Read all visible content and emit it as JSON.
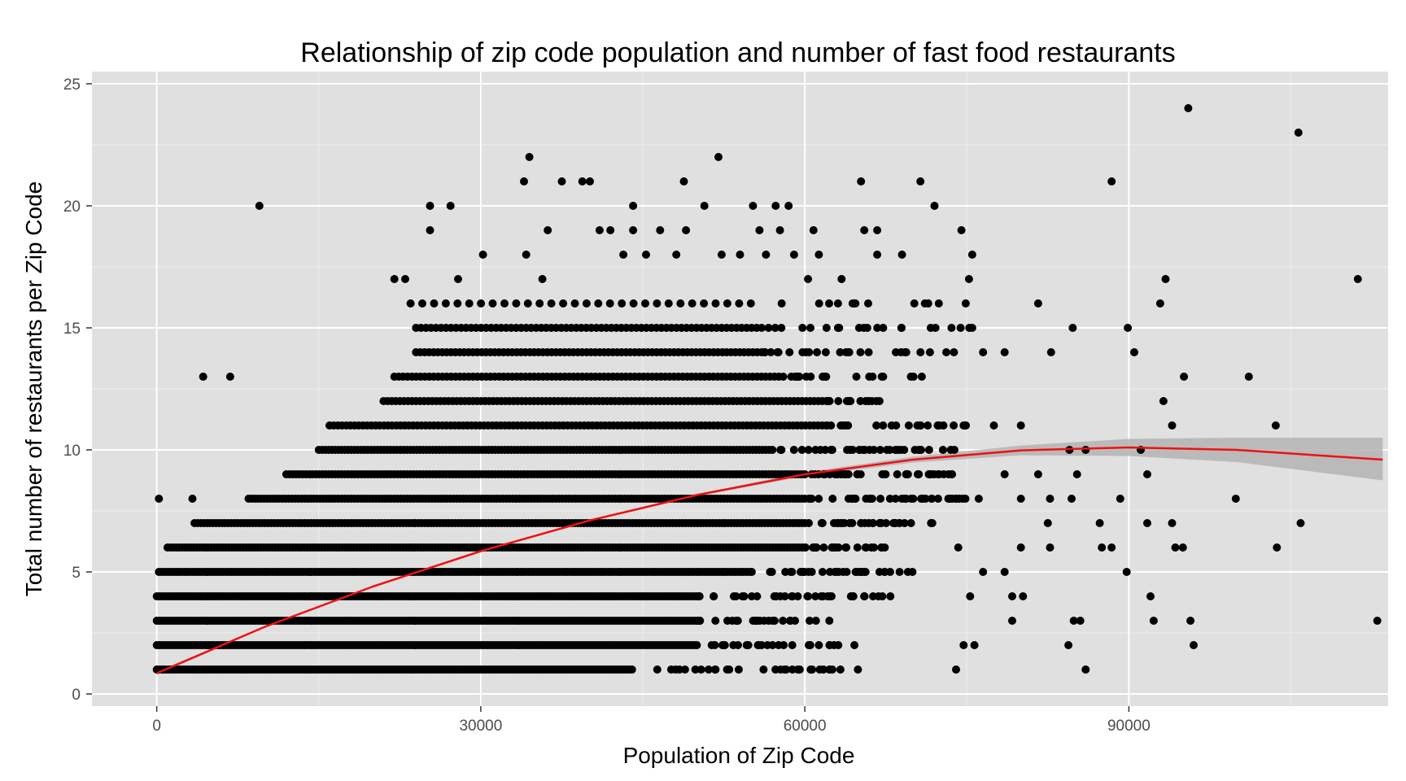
{
  "chart_data": {
    "type": "scatter",
    "title": "Relationship of zip code population and number of fast food restaurants",
    "xlabel": "Population of Zip Code",
    "ylabel": "Total number of restaurants per Zip Code",
    "xlim": [
      -6000,
      114000
    ],
    "ylim": [
      -0.5,
      25.5
    ],
    "x_ticks": [
      0,
      30000,
      60000,
      90000
    ],
    "x_tick_labels": [
      "0",
      "30000",
      "60000",
      "90000"
    ],
    "y_ticks": [
      0,
      5,
      10,
      15,
      20,
      25
    ],
    "y_tick_labels": [
      "0",
      "5",
      "10",
      "15",
      "20",
      "25"
    ],
    "grid": true,
    "legend": "none",
    "colors": {
      "panel_background": "#e0e0e0",
      "grid_major": "#ffffff",
      "grid_minor": "#eeeeee",
      "points": "#000000",
      "fit_line": "#ee1111",
      "confidence_band": "#b3b3b3"
    },
    "bands": [
      {
        "y": 1,
        "dense": [
          0,
          44000
        ],
        "sparse": [
          44000,
          65000
        ],
        "n_dense": 200,
        "n_sparse": 30
      },
      {
        "y": 2,
        "dense": [
          0,
          50000
        ],
        "sparse": [
          50000,
          65000
        ],
        "n_dense": 220,
        "n_sparse": 25
      },
      {
        "y": 3,
        "dense": [
          0,
          50000
        ],
        "sparse": [
          50000,
          63000
        ],
        "n_dense": 220,
        "n_sparse": 25
      },
      {
        "y": 4,
        "dense": [
          0,
          50000
        ],
        "sparse": [
          50000,
          68000
        ],
        "n_dense": 220,
        "n_sparse": 35
      },
      {
        "y": 5,
        "dense": [
          200,
          55000
        ],
        "sparse": [
          55000,
          70000
        ],
        "n_dense": 230,
        "n_sparse": 35
      },
      {
        "y": 6,
        "dense": [
          1000,
          60000
        ],
        "sparse": [
          60000,
          68000
        ],
        "n_dense": 220,
        "n_sparse": 25
      },
      {
        "y": 7,
        "dense": [
          3500,
          60000
        ],
        "sparse": [
          60000,
          72000
        ],
        "n_dense": 200,
        "n_sparse": 30
      },
      {
        "y": 8,
        "dense": [
          8500,
          60000
        ],
        "sparse": [
          60000,
          75000
        ],
        "n_dense": 180,
        "n_sparse": 40
      },
      {
        "y": 9,
        "dense": [
          12000,
          60000
        ],
        "sparse": [
          60000,
          75000
        ],
        "n_dense": 160,
        "n_sparse": 35
      },
      {
        "y": 10,
        "dense": [
          15000,
          57000
        ],
        "sparse": [
          57000,
          74000
        ],
        "n_dense": 140,
        "n_sparse": 35
      },
      {
        "y": 11,
        "dense": [
          16000,
          62000
        ],
        "sparse": [
          62000,
          75000
        ],
        "n_dense": 120,
        "n_sparse": 25
      },
      {
        "y": 12,
        "dense": [
          21000,
          62000
        ],
        "sparse": [
          62000,
          67000
        ],
        "n_dense": 110,
        "n_sparse": 15
      },
      {
        "y": 13,
        "dense": [
          22000,
          58000
        ],
        "sparse": [
          58000,
          72000
        ],
        "n_dense": 90,
        "n_sparse": 20
      },
      {
        "y": 14,
        "dense": [
          24000,
          56000
        ],
        "sparse": [
          56000,
          75000
        ],
        "n_dense": 80,
        "n_sparse": 25
      },
      {
        "y": 15,
        "dense": [
          24000,
          56000
        ],
        "sparse": [
          56000,
          76000
        ],
        "n_dense": 70,
        "n_sparse": 20
      },
      {
        "y": 16,
        "dense": [
          23500,
          55000
        ],
        "sparse": [
          55000,
          75000
        ],
        "n_dense": 30,
        "n_sparse": 12
      }
    ],
    "points": [
      {
        "x": 200,
        "y": 8
      },
      {
        "x": 3300,
        "y": 8
      },
      {
        "x": 4300,
        "y": 13
      },
      {
        "x": 6800,
        "y": 13
      },
      {
        "x": 9500,
        "y": 20
      },
      {
        "x": 25300,
        "y": 20
      },
      {
        "x": 27200,
        "y": 20
      },
      {
        "x": 25300,
        "y": 19
      },
      {
        "x": 22000,
        "y": 17
      },
      {
        "x": 23000,
        "y": 17
      },
      {
        "x": 27900,
        "y": 17
      },
      {
        "x": 30200,
        "y": 18
      },
      {
        "x": 34000,
        "y": 21
      },
      {
        "x": 34500,
        "y": 22
      },
      {
        "x": 34200,
        "y": 18
      },
      {
        "x": 35700,
        "y": 17
      },
      {
        "x": 36200,
        "y": 19
      },
      {
        "x": 37500,
        "y": 21
      },
      {
        "x": 39400,
        "y": 21
      },
      {
        "x": 40100,
        "y": 21
      },
      {
        "x": 41000,
        "y": 19
      },
      {
        "x": 42000,
        "y": 19
      },
      {
        "x": 43200,
        "y": 18
      },
      {
        "x": 44100,
        "y": 19
      },
      {
        "x": 44100,
        "y": 20
      },
      {
        "x": 45300,
        "y": 18
      },
      {
        "x": 46600,
        "y": 19
      },
      {
        "x": 48100,
        "y": 18
      },
      {
        "x": 48800,
        "y": 21
      },
      {
        "x": 49000,
        "y": 19
      },
      {
        "x": 50700,
        "y": 20
      },
      {
        "x": 52000,
        "y": 22
      },
      {
        "x": 52300,
        "y": 18
      },
      {
        "x": 54000,
        "y": 18
      },
      {
        "x": 55200,
        "y": 20
      },
      {
        "x": 55800,
        "y": 19
      },
      {
        "x": 56400,
        "y": 18
      },
      {
        "x": 57300,
        "y": 20
      },
      {
        "x": 57700,
        "y": 19
      },
      {
        "x": 58500,
        "y": 20
      },
      {
        "x": 59000,
        "y": 18
      },
      {
        "x": 60800,
        "y": 19
      },
      {
        "x": 61300,
        "y": 18
      },
      {
        "x": 60300,
        "y": 17
      },
      {
        "x": 63400,
        "y": 17
      },
      {
        "x": 65200,
        "y": 21
      },
      {
        "x": 65500,
        "y": 19
      },
      {
        "x": 66700,
        "y": 19
      },
      {
        "x": 66700,
        "y": 18
      },
      {
        "x": 69000,
        "y": 18
      },
      {
        "x": 70700,
        "y": 21
      },
      {
        "x": 72000,
        "y": 20
      },
      {
        "x": 74500,
        "y": 19
      },
      {
        "x": 75500,
        "y": 18
      },
      {
        "x": 75200,
        "y": 17
      },
      {
        "x": 74900,
        "y": 16
      },
      {
        "x": 75500,
        "y": 15
      },
      {
        "x": 76500,
        "y": 14
      },
      {
        "x": 78500,
        "y": 14
      },
      {
        "x": 81600,
        "y": 16
      },
      {
        "x": 82800,
        "y": 14
      },
      {
        "x": 84800,
        "y": 15
      },
      {
        "x": 88400,
        "y": 21
      },
      {
        "x": 89900,
        "y": 15
      },
      {
        "x": 90500,
        "y": 14
      },
      {
        "x": 92900,
        "y": 16
      },
      {
        "x": 93400,
        "y": 17
      },
      {
        "x": 93200,
        "y": 12
      },
      {
        "x": 94000,
        "y": 11
      },
      {
        "x": 95100,
        "y": 13
      },
      {
        "x": 95500,
        "y": 24
      },
      {
        "x": 101100,
        "y": 13
      },
      {
        "x": 103600,
        "y": 11
      },
      {
        "x": 105700,
        "y": 23
      },
      {
        "x": 111200,
        "y": 17
      },
      {
        "x": 89200,
        "y": 8
      },
      {
        "x": 91100,
        "y": 10
      },
      {
        "x": 91700,
        "y": 9
      },
      {
        "x": 91700,
        "y": 7
      },
      {
        "x": 92000,
        "y": 4
      },
      {
        "x": 92300,
        "y": 3
      },
      {
        "x": 94000,
        "y": 7
      },
      {
        "x": 94300,
        "y": 6
      },
      {
        "x": 95000,
        "y": 6
      },
      {
        "x": 95700,
        "y": 3
      },
      {
        "x": 96000,
        "y": 2
      },
      {
        "x": 99900,
        "y": 8
      },
      {
        "x": 103700,
        "y": 6
      },
      {
        "x": 105900,
        "y": 7
      },
      {
        "x": 113000,
        "y": 3
      },
      {
        "x": 89800,
        "y": 5
      },
      {
        "x": 87500,
        "y": 6
      },
      {
        "x": 88400,
        "y": 6
      },
      {
        "x": 87300,
        "y": 7
      },
      {
        "x": 86000,
        "y": 10
      },
      {
        "x": 85200,
        "y": 9
      },
      {
        "x": 84500,
        "y": 10
      },
      {
        "x": 84700,
        "y": 8
      },
      {
        "x": 84400,
        "y": 2
      },
      {
        "x": 84900,
        "y": 3
      },
      {
        "x": 85500,
        "y": 3
      },
      {
        "x": 86000,
        "y": 1
      },
      {
        "x": 82500,
        "y": 7
      },
      {
        "x": 82700,
        "y": 6
      },
      {
        "x": 82700,
        "y": 8
      },
      {
        "x": 81600,
        "y": 9
      },
      {
        "x": 80000,
        "y": 8
      },
      {
        "x": 79200,
        "y": 4
      },
      {
        "x": 80200,
        "y": 4
      },
      {
        "x": 79200,
        "y": 3
      },
      {
        "x": 80000,
        "y": 6
      },
      {
        "x": 78500,
        "y": 9
      },
      {
        "x": 77500,
        "y": 11
      },
      {
        "x": 80000,
        "y": 11
      },
      {
        "x": 76500,
        "y": 5
      },
      {
        "x": 78500,
        "y": 5
      },
      {
        "x": 74000,
        "y": 1
      },
      {
        "x": 74700,
        "y": 2
      },
      {
        "x": 75700,
        "y": 2
      },
      {
        "x": 74200,
        "y": 6
      },
      {
        "x": 76100,
        "y": 8
      },
      {
        "x": 75300,
        "y": 4
      }
    ],
    "fit_curve": [
      {
        "x": 0,
        "y": 0.85,
        "lower": 0.78,
        "upper": 0.92
      },
      {
        "x": 10000,
        "y": 2.75,
        "lower": 2.72,
        "upper": 2.78
      },
      {
        "x": 20000,
        "y": 4.4,
        "lower": 4.38,
        "upper": 4.42
      },
      {
        "x": 30000,
        "y": 5.85,
        "lower": 5.83,
        "upper": 5.87
      },
      {
        "x": 40000,
        "y": 7.1,
        "lower": 7.07,
        "upper": 7.13
      },
      {
        "x": 50000,
        "y": 8.15,
        "lower": 8.1,
        "upper": 8.2
      },
      {
        "x": 60000,
        "y": 9.0,
        "lower": 8.92,
        "upper": 9.08
      },
      {
        "x": 70000,
        "y": 9.6,
        "lower": 9.48,
        "upper": 9.72
      },
      {
        "x": 80000,
        "y": 9.98,
        "lower": 9.78,
        "upper": 10.18
      },
      {
        "x": 90000,
        "y": 10.1,
        "lower": 9.75,
        "upper": 10.45
      },
      {
        "x": 100000,
        "y": 10.0,
        "lower": 9.5,
        "upper": 10.5
      },
      {
        "x": 113500,
        "y": 9.6,
        "lower": 8.75,
        "upper": 10.5
      }
    ]
  }
}
